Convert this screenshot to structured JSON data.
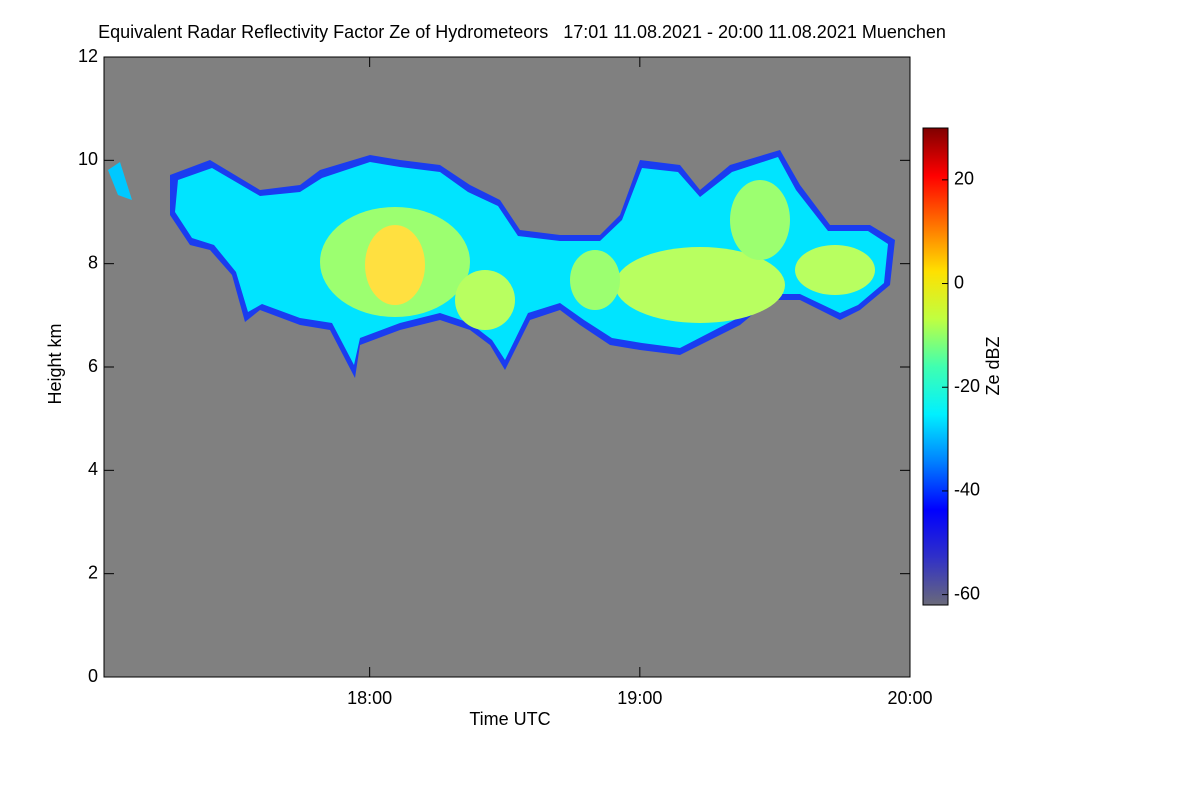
{
  "chart_data": {
    "type": "heatmap",
    "title": "Equivalent Radar Reflectivity Factor Ze of Hydrometeors   17:01 11.08.2021 - 20:00 11.08.2021 Muenchen",
    "x_label": "Time UTC",
    "y_label": "Height km",
    "xlim": [
      17.0167,
      20.0
    ],
    "xticks": [
      {
        "value": 18,
        "label": "18:00"
      },
      {
        "value": 19,
        "label": "19:00"
      },
      {
        "value": 20,
        "label": "20:00"
      }
    ],
    "ylim": [
      0,
      12
    ],
    "yticks": [
      0,
      2,
      4,
      6,
      8,
      10,
      12
    ],
    "background": "#808080",
    "colorbar": {
      "label": "Ze dBZ",
      "lim": [
        -62,
        30
      ],
      "ticks": [
        -60,
        -40,
        -20,
        0,
        20
      ],
      "colors": [
        "#6a6a7a",
        "#3030c8",
        "#0000ff",
        "#0080ff",
        "#00f0ff",
        "#40ffb0",
        "#c0ff40",
        "#ffe000",
        "#ff7000",
        "#ff0000",
        "#800000"
      ]
    }
  }
}
